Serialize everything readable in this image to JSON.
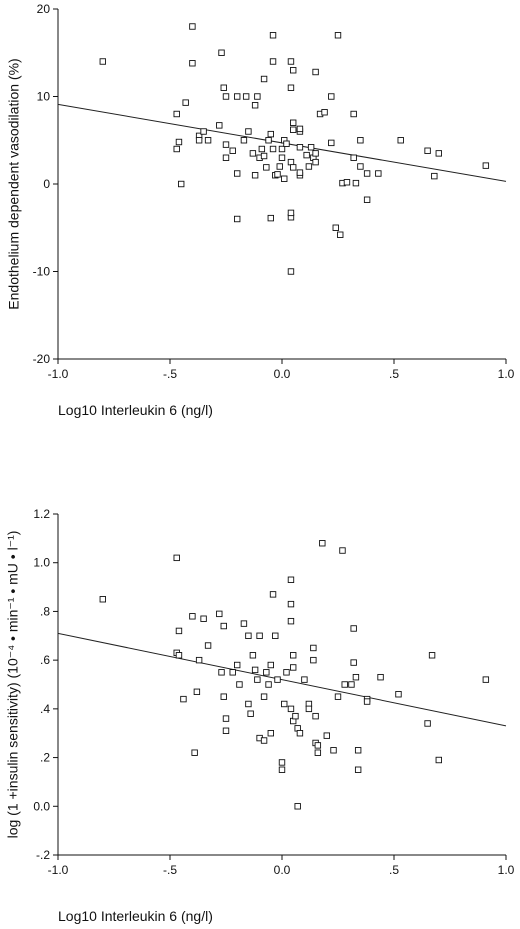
{
  "chart_data": [
    {
      "type": "scatter",
      "title": "",
      "xlabel": "Log10 Interleukin 6 (ng/l)",
      "ylabel": "Endothelium dependent vasodilation (%)",
      "xlim": [
        -1.0,
        1.0
      ],
      "ylim": [
        -20,
        20
      ],
      "x_ticks": [
        -1.0,
        -0.5,
        0.0,
        0.5,
        1.0
      ],
      "x_tick_labels": [
        "-1.0",
        "-.5",
        "0.0",
        ".5",
        "1.0"
      ],
      "y_ticks": [
        -20,
        -10,
        0,
        10,
        20
      ],
      "y_tick_labels": [
        "-20",
        "-10",
        "0",
        "10",
        "20"
      ],
      "grid": false,
      "fit_line": [
        [
          -1.0,
          9.1
        ],
        [
          1.0,
          0.3
        ]
      ],
      "series": [
        {
          "points": [
            [
              -0.8,
              14
            ],
            [
              -0.4,
              18
            ],
            [
              -0.4,
              13.8
            ],
            [
              -0.27,
              15
            ],
            [
              -0.26,
              11
            ],
            [
              -0.25,
              10
            ],
            [
              -0.2,
              10
            ],
            [
              -0.16,
              10
            ],
            [
              -0.12,
              9
            ],
            [
              -0.11,
              10
            ],
            [
              -0.04,
              17
            ],
            [
              -0.04,
              14
            ],
            [
              -0.08,
              12
            ],
            [
              0.04,
              14
            ],
            [
              0.05,
              13
            ],
            [
              0.04,
              11
            ],
            [
              0.08,
              6
            ],
            [
              0.08,
              6.3
            ],
            [
              0.15,
              12.8
            ],
            [
              0.25,
              17
            ],
            [
              0.22,
              10
            ],
            [
              -0.47,
              8
            ],
            [
              -0.43,
              9.3
            ],
            [
              -0.46,
              4.8
            ],
            [
              -0.47,
              4
            ],
            [
              -0.45,
              0
            ],
            [
              -0.37,
              5.5
            ],
            [
              -0.37,
              5
            ],
            [
              -0.35,
              6
            ],
            [
              -0.33,
              5
            ],
            [
              -0.28,
              6.7
            ],
            [
              -0.25,
              4.5
            ],
            [
              -0.25,
              3
            ],
            [
              -0.22,
              3.8
            ],
            [
              -0.2,
              1.2
            ],
            [
              -0.2,
              -4
            ],
            [
              -0.17,
              5
            ],
            [
              -0.15,
              6
            ],
            [
              -0.13,
              3.5
            ],
            [
              -0.12,
              1
            ],
            [
              -0.1,
              3
            ],
            [
              -0.09,
              4
            ],
            [
              -0.08,
              3.2
            ],
            [
              -0.07,
              1.9
            ],
            [
              -0.06,
              5
            ],
            [
              -0.05,
              5.7
            ],
            [
              -0.04,
              4
            ],
            [
              -0.05,
              -3.9
            ],
            [
              -0.03,
              1
            ],
            [
              -0.02,
              1.1
            ],
            [
              -0.01,
              2
            ],
            [
              0,
              4
            ],
            [
              0,
              3
            ],
            [
              0.01,
              0.6
            ],
            [
              0.01,
              5
            ],
            [
              0.02,
              4.6
            ],
            [
              0.05,
              6.2
            ],
            [
              0.05,
              7
            ],
            [
              0.04,
              2.5
            ],
            [
              0.05,
              1.9
            ],
            [
              0.04,
              -3.8
            ],
            [
              0.04,
              -3.3
            ],
            [
              0.04,
              -10
            ],
            [
              0.08,
              4.2
            ],
            [
              0.08,
              1
            ],
            [
              0.08,
              1.3
            ],
            [
              0.11,
              3.3
            ],
            [
              0.12,
              2
            ],
            [
              0.13,
              4.2
            ],
            [
              0.14,
              3
            ],
            [
              0.15,
              2.5
            ],
            [
              0.15,
              3.5
            ],
            [
              0.17,
              8
            ],
            [
              0.19,
              8.2
            ],
            [
              0.22,
              4.7
            ],
            [
              0.24,
              -5
            ],
            [
              0.26,
              -5.8
            ],
            [
              0.27,
              0.1
            ],
            [
              0.29,
              0.2
            ],
            [
              0.32,
              8
            ],
            [
              0.32,
              3
            ],
            [
              0.33,
              0.1
            ],
            [
              0.35,
              5
            ],
            [
              0.35,
              2
            ],
            [
              0.38,
              -1.8
            ],
            [
              0.38,
              1.2
            ],
            [
              0.43,
              1.2
            ],
            [
              0.53,
              5
            ],
            [
              0.65,
              3.8
            ],
            [
              0.68,
              0.9
            ],
            [
              0.7,
              3.5
            ],
            [
              0.91,
              2.1
            ]
          ]
        }
      ]
    },
    {
      "type": "scatter",
      "title": "",
      "xlabel": "Log10 Interleukin 6 (ng/l)",
      "ylabel": "log (1 +insulin sensitivity) (10⁻⁴ • min⁻¹ • mU • l⁻¹)",
      "xlim": [
        -1.0,
        1.0
      ],
      "ylim": [
        -0.2,
        1.2
      ],
      "x_ticks": [
        -1.0,
        -0.5,
        0.0,
        0.5,
        1.0
      ],
      "x_tick_labels": [
        "-1.0",
        "-.5",
        "0.0",
        ".5",
        "1.0"
      ],
      "y_ticks": [
        -0.2,
        0.0,
        0.2,
        0.4,
        0.6,
        0.8,
        1.0,
        1.2
      ],
      "y_tick_labels": [
        "-.2",
        "0.0",
        ".2",
        ".4",
        ".6",
        ".8",
        "1.0",
        "1.2"
      ],
      "grid": false,
      "fit_line": [
        [
          -1.0,
          0.71
        ],
        [
          1.0,
          0.33
        ]
      ],
      "series": [
        {
          "points": [
            [
              -0.8,
              0.85
            ],
            [
              -0.47,
              1.02
            ],
            [
              -0.47,
              0.63
            ],
            [
              -0.46,
              0.72
            ],
            [
              -0.44,
              0.44
            ],
            [
              -0.46,
              0.62
            ],
            [
              -0.4,
              0.78
            ],
            [
              -0.37,
              0.6
            ],
            [
              -0.39,
              0.22
            ],
            [
              -0.38,
              0.47
            ],
            [
              -0.35,
              0.77
            ],
            [
              -0.33,
              0.66
            ],
            [
              -0.28,
              0.79
            ],
            [
              -0.26,
              0.74
            ],
            [
              -0.27,
              0.55
            ],
            [
              -0.26,
              0.45
            ],
            [
              -0.25,
              0.36
            ],
            [
              -0.25,
              0.31
            ],
            [
              -0.22,
              0.55
            ],
            [
              -0.2,
              0.58
            ],
            [
              -0.19,
              0.5
            ],
            [
              -0.17,
              0.75
            ],
            [
              -0.15,
              0.7
            ],
            [
              -0.15,
              0.42
            ],
            [
              -0.14,
              0.38
            ],
            [
              -0.13,
              0.62
            ],
            [
              -0.12,
              0.56
            ],
            [
              -0.11,
              0.52
            ],
            [
              -0.1,
              0.7
            ],
            [
              -0.1,
              0.28
            ],
            [
              -0.08,
              0.27
            ],
            [
              -0.08,
              0.45
            ],
            [
              -0.07,
              0.55
            ],
            [
              -0.06,
              0.5
            ],
            [
              -0.05,
              0.58
            ],
            [
              -0.05,
              0.3
            ],
            [
              -0.04,
              0.87
            ],
            [
              -0.03,
              0.7
            ],
            [
              -0.02,
              0.52
            ],
            [
              0,
              0.18
            ],
            [
              0,
              0.15
            ],
            [
              0.01,
              0.42
            ],
            [
              0.02,
              0.55
            ],
            [
              0.04,
              0.93
            ],
            [
              0.04,
              0.83
            ],
            [
              0.04,
              0.76
            ],
            [
              0.05,
              0.62
            ],
            [
              0.05,
              0.57
            ],
            [
              0.04,
              0.4
            ],
            [
              0.05,
              0.35
            ],
            [
              0.06,
              0.37
            ],
            [
              0.07,
              0.32
            ],
            [
              0.08,
              0.3
            ],
            [
              0.07,
              0.0
            ],
            [
              0.1,
              0.52
            ],
            [
              0.12,
              0.42
            ],
            [
              0.12,
              0.4
            ],
            [
              0.14,
              0.6
            ],
            [
              0.14,
              0.65
            ],
            [
              0.15,
              0.26
            ],
            [
              0.15,
              0.37
            ],
            [
              0.16,
              0.25
            ],
            [
              0.16,
              0.22
            ],
            [
              0.18,
              1.08
            ],
            [
              0.2,
              0.29
            ],
            [
              0.23,
              0.23
            ],
            [
              0.25,
              0.45
            ],
            [
              0.27,
              1.05
            ],
            [
              0.28,
              0.5
            ],
            [
              0.31,
              0.5
            ],
            [
              0.32,
              0.59
            ],
            [
              0.32,
              0.73
            ],
            [
              0.33,
              0.53
            ],
            [
              0.34,
              0.15
            ],
            [
              0.34,
              0.23
            ],
            [
              0.38,
              0.44
            ],
            [
              0.38,
              0.43
            ],
            [
              0.44,
              0.53
            ],
            [
              0.52,
              0.46
            ],
            [
              0.65,
              0.34
            ],
            [
              0.67,
              0.62
            ],
            [
              0.7,
              0.19
            ],
            [
              0.91,
              0.52
            ]
          ]
        }
      ]
    }
  ]
}
